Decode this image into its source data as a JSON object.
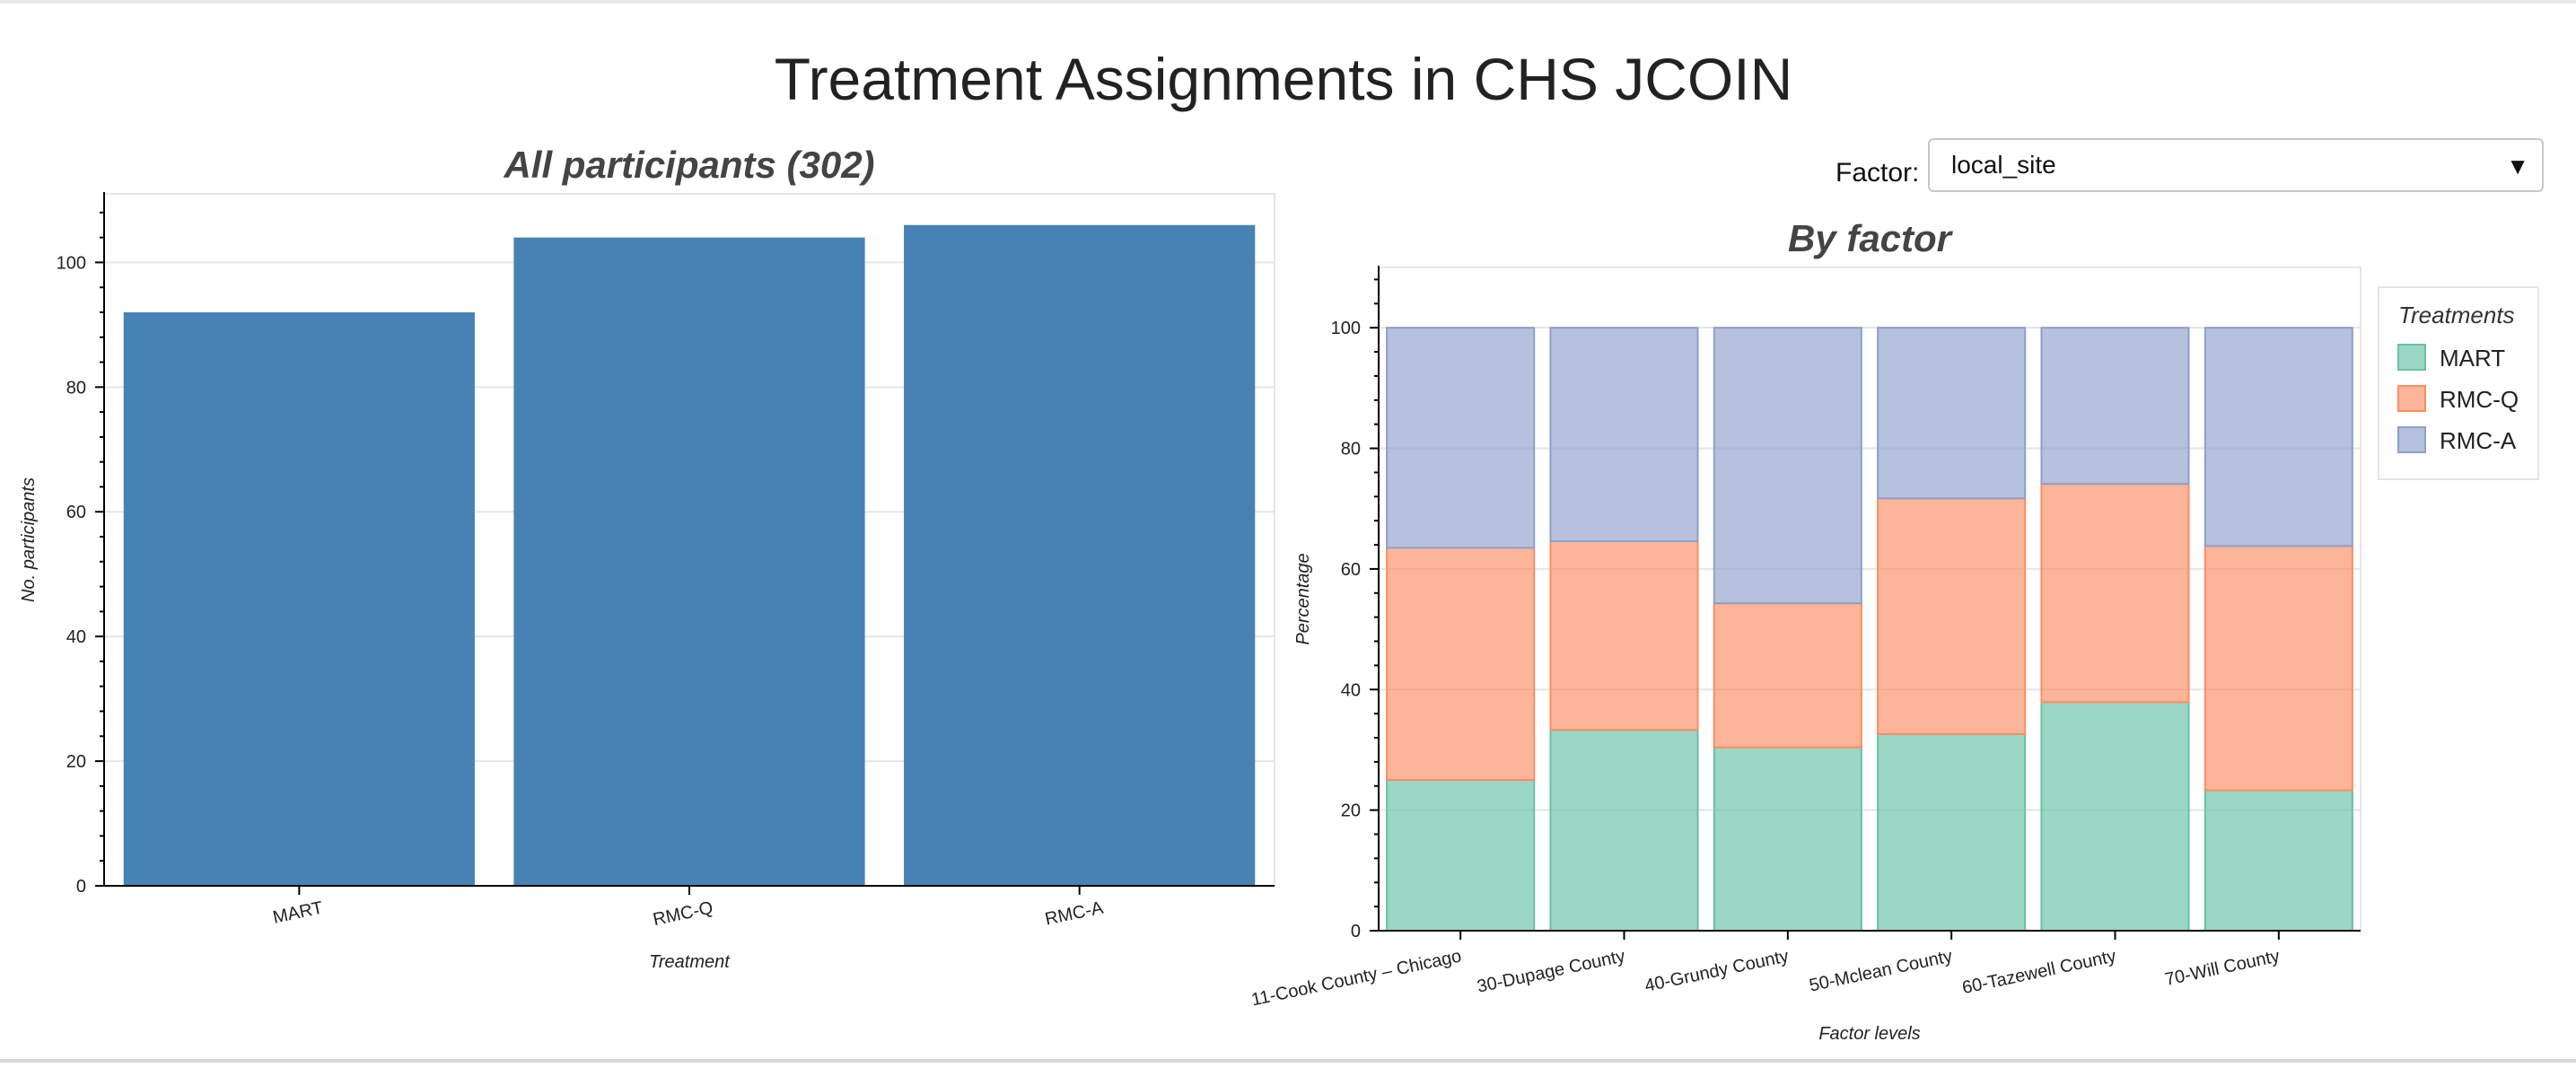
{
  "page": {
    "title": "Treatment Assignments in CHS JCOIN"
  },
  "controls": {
    "factor_label": "Factor:",
    "factor_value": "local_site"
  },
  "colors": {
    "bar": "#4682b4",
    "MART": "#66c2a5",
    "RMC-Q": "#fc8d62",
    "RMC-A": "#8da0cb"
  },
  "chart_data": [
    {
      "type": "bar",
      "title": "All participants (302)",
      "xlabel": "Treatment",
      "ylabel": "No. participants",
      "categories": [
        "MART",
        "RMC-Q",
        "RMC-A"
      ],
      "values": [
        92,
        104,
        106
      ],
      "ylim": [
        0,
        111
      ],
      "yticks": [
        0,
        20,
        40,
        60,
        80,
        100
      ],
      "grid": true
    },
    {
      "type": "bar",
      "stacked": true,
      "title": "By factor",
      "xlabel": "Factor levels",
      "ylabel": "Percentage",
      "categories": [
        "11-Cook County – Chicago",
        "30-Dupage County",
        "40-Grundy County",
        "50-Mclean County",
        "60-Tazewell County",
        "70-Will County"
      ],
      "series": [
        {
          "name": "MART",
          "values": [
            25,
            33.3,
            30.4,
            32.6,
            37.9,
            23.3
          ]
        },
        {
          "name": "RMC-Q",
          "values": [
            38.5,
            31.3,
            23.9,
            39.1,
            36.2,
            40.5
          ]
        },
        {
          "name": "RMC-A",
          "values": [
            36.5,
            35.4,
            45.7,
            28.3,
            25.9,
            36.2
          ]
        }
      ],
      "ylim": [
        0,
        110
      ],
      "yticks": [
        0,
        20,
        40,
        60,
        80,
        100
      ],
      "legend_title": "Treatments",
      "legend_position": "right",
      "grid": true
    }
  ]
}
